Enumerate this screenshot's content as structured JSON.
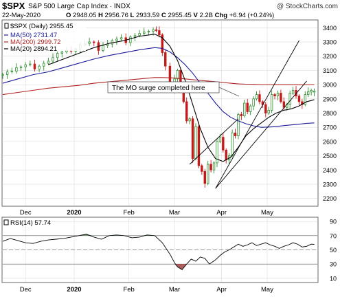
{
  "header": {
    "symbol": "$SPX",
    "name": "S&P 500 Large Cap Index",
    "exchange": "INDX",
    "watermark": "@ StockCharts.com",
    "date": "22-May-2020",
    "open_label": "O",
    "open": "2948.05",
    "high_label": "H",
    "high": "2956.76",
    "low_label": "L",
    "low": "2933.59",
    "close_label": "C",
    "close": "2955.45",
    "volume_label": "V",
    "volume": "2.2B",
    "chg_label": "Chg",
    "chg": "+6.94 (+0.24%)"
  },
  "legend": [
    {
      "label": "$SPX (Daily) 2955.45",
      "color": "#000000"
    },
    {
      "label": "MA(50) 2731.47",
      "color": "#1b1b9a"
    },
    {
      "label": "MA(200) 2999.72",
      "color": "#b22222"
    },
    {
      "label": "MA(20) 2894.21",
      "color": "#000000"
    }
  ],
  "annotation": "The MO surge completed here",
  "rsi_label": "RSI(14) 57.74",
  "colors": {
    "up": "#2f8f2f",
    "down": "#c41a1a",
    "ma50": "#1b1b9a",
    "ma200": "#b22222",
    "ma20": "#000000",
    "rsi_fill": "#5a8a5a",
    "rsi_fill_low": "#a04040"
  },
  "chart_data": [
    {
      "type": "candlestick",
      "title": "$SPX S&P 500 Large Cap Index",
      "x_ticks": [
        {
          "label": "Dec",
          "d": 15
        },
        {
          "label": "2020",
          "d": 47,
          "bold": true
        },
        {
          "label": "Feb",
          "d": 83
        },
        {
          "label": "Mar",
          "d": 113
        },
        {
          "label": "Apr",
          "d": 144
        },
        {
          "label": "May",
          "d": 174
        }
      ],
      "ylim": [
        2150,
        3450
      ],
      "y_ticks": [
        2200,
        2300,
        2400,
        2500,
        2600,
        2700,
        2800,
        2900,
        3000,
        3100,
        3200,
        3300,
        3400
      ],
      "price_days": [
        0,
        3,
        6,
        9,
        12,
        15,
        18,
        21,
        24,
        27,
        30,
        33,
        36,
        39,
        42,
        45,
        48,
        51,
        54,
        57,
        60,
        63,
        66,
        69,
        72,
        75,
        78,
        81,
        84,
        87,
        90,
        93,
        96,
        99,
        101,
        103,
        105,
        107,
        110,
        113,
        115,
        117,
        119,
        121,
        123,
        125,
        127,
        129,
        131,
        133,
        135,
        137,
        139,
        141,
        143,
        145,
        147,
        149,
        151,
        153,
        155,
        157,
        159,
        161,
        163,
        165,
        167,
        169,
        171,
        173,
        175,
        177,
        179,
        181,
        183,
        185,
        187,
        189,
        191,
        193,
        195,
        197,
        199,
        201,
        203,
        205
      ],
      "price_close": [
        3070,
        3090,
        3095,
        3120,
        3125,
        3140,
        3145,
        3110,
        3130,
        3150,
        3165,
        3190,
        3220,
        3230,
        3240,
        3235,
        3250,
        3280,
        3290,
        3300,
        3295,
        3240,
        3275,
        3285,
        3310,
        3320,
        3330,
        3295,
        3335,
        3345,
        3360,
        3370,
        3375,
        3385,
        3380,
        3350,
        3225,
        3130,
        2955,
        3040,
        3100,
        2970,
        2880,
        2745,
        2760,
        2480,
        2705,
        2430,
        2390,
        2305,
        2440,
        2400,
        2450,
        2600,
        2630,
        2540,
        2470,
        2500,
        2660,
        2640,
        2790,
        2780,
        2870,
        2810,
        2850,
        2900,
        2930,
        2880,
        2860,
        2800,
        2820,
        2930,
        2920,
        2940,
        2880,
        2840,
        2860,
        2940,
        2960,
        2920,
        2880,
        2860,
        2930,
        2950,
        2960,
        2955
      ],
      "price_open": [
        3065,
        3070,
        3090,
        3095,
        3120,
        3125,
        3140,
        3145,
        3110,
        3130,
        3150,
        3165,
        3190,
        3220,
        3230,
        3240,
        3235,
        3250,
        3280,
        3290,
        3300,
        3295,
        3240,
        3275,
        3285,
        3310,
        3320,
        3330,
        3295,
        3335,
        3345,
        3360,
        3370,
        3375,
        3385,
        3380,
        3350,
        3225,
        3130,
        2955,
        3040,
        3100,
        2970,
        2880,
        2745,
        2760,
        2480,
        2705,
        2430,
        2390,
        2305,
        2440,
        2400,
        2450,
        2600,
        2630,
        2540,
        2470,
        2500,
        2660,
        2640,
        2790,
        2780,
        2870,
        2810,
        2850,
        2900,
        2930,
        2880,
        2860,
        2800,
        2820,
        2930,
        2920,
        2940,
        2880,
        2840,
        2860,
        2940,
        2960,
        2920,
        2880,
        2860,
        2930,
        2948,
        2948
      ],
      "ma_days": [
        0,
        10,
        20,
        30,
        40,
        50,
        60,
        70,
        80,
        90,
        100,
        105,
        110,
        115,
        120,
        125,
        130,
        135,
        140,
        145,
        150,
        155,
        160,
        165,
        170,
        175,
        180,
        185,
        190,
        195,
        200,
        205
      ],
      "ma50": [
        3010,
        3040,
        3070,
        3090,
        3120,
        3150,
        3180,
        3205,
        3225,
        3245,
        3260,
        3255,
        3230,
        3190,
        3140,
        3080,
        3010,
        2940,
        2870,
        2810,
        2770,
        2745,
        2725,
        2710,
        2700,
        2702,
        2705,
        2712,
        2717,
        2722,
        2728,
        2731
      ],
      "ma200": [
        2930,
        2945,
        2960,
        2975,
        2985,
        2995,
        3010,
        3020,
        3030,
        3040,
        3050,
        3050,
        3048,
        3045,
        3040,
        3035,
        3030,
        3025,
        3020,
        3015,
        3010,
        3005,
        3003,
        3002,
        3000,
        3000,
        2999,
        2999,
        2999,
        2999,
        3000,
        3000
      ],
      "ma20_days": [
        30,
        40,
        50,
        60,
        70,
        80,
        90,
        100,
        105,
        110,
        115,
        120,
        125,
        130,
        135,
        140,
        145,
        150,
        155,
        160,
        165,
        170,
        175,
        180,
        185,
        190,
        195,
        200,
        205
      ],
      "ma20": [
        3140,
        3180,
        3220,
        3260,
        3290,
        3310,
        3340,
        3355,
        3330,
        3270,
        3170,
        3030,
        2860,
        2690,
        2560,
        2480,
        2460,
        2490,
        2560,
        2640,
        2690,
        2730,
        2770,
        2800,
        2820,
        2830,
        2850,
        2880,
        2894
      ],
      "trend_lines": [
        [
          140,
          2270,
          195,
          3310
        ],
        [
          140,
          2270,
          200,
          3025
        ],
        [
          123,
          2440,
          155,
          2760
        ]
      ]
    },
    {
      "type": "line",
      "title": "RSI(14)",
      "ylim": [
        5,
        95
      ],
      "y_ticks": [
        10,
        30,
        50,
        70,
        90
      ],
      "x": [
        0,
        5,
        10,
        15,
        20,
        25,
        30,
        35,
        40,
        45,
        50,
        55,
        60,
        65,
        70,
        75,
        80,
        85,
        90,
        95,
        100,
        105,
        110,
        113,
        115,
        118,
        121,
        124,
        127,
        130,
        133,
        136,
        140,
        143,
        146,
        149,
        152,
        155,
        158,
        161,
        164,
        167,
        170,
        173,
        176,
        179,
        182,
        185,
        188,
        191,
        194,
        197,
        200,
        203,
        205
      ],
      "values": [
        62,
        66,
        63,
        60,
        59,
        62,
        64,
        65,
        66,
        68,
        70,
        72,
        68,
        65,
        70,
        71,
        70,
        67,
        68,
        71,
        70,
        60,
        44,
        32,
        26,
        22,
        30,
        37,
        34,
        40,
        38,
        30,
        36,
        42,
        47,
        50,
        54,
        58,
        55,
        57,
        60,
        56,
        58,
        60,
        57,
        55,
        52,
        55,
        57,
        60,
        58,
        54,
        55,
        58,
        57.74
      ]
    }
  ]
}
